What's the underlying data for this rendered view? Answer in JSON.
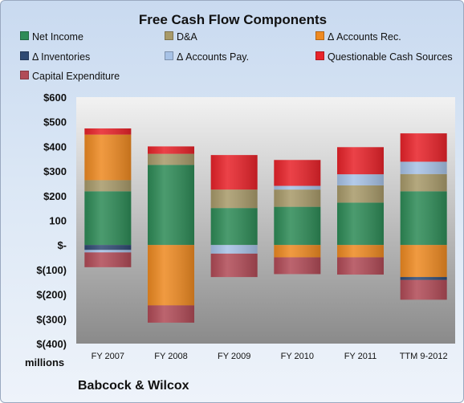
{
  "chart_data": {
    "type": "bar",
    "stacked": true,
    "title": "Free Cash Flow Components",
    "categories": [
      "FY 2007",
      "FY 2008",
      "FY 2009",
      "FY 2010",
      "FY 2011",
      "TTM 9-2012"
    ],
    "series": [
      {
        "name": "Net Income",
        "color": "#2e8b57",
        "values": [
          218,
          325,
          150,
          155,
          172,
          218
        ]
      },
      {
        "name": "D&A",
        "color": "#a89a6a",
        "values": [
          45,
          45,
          75,
          70,
          70,
          70
        ]
      },
      {
        "name": "Δ Accounts Rec.",
        "color": "#ee8a22",
        "values": [
          185,
          -245,
          0,
          -50,
          -50,
          -130
        ]
      },
      {
        "name": "Δ Inventories",
        "color": "#2f4a73",
        "values": [
          -20,
          0,
          0,
          0,
          0,
          -12
        ]
      },
      {
        "name": "Δ Accounts Pay.",
        "color": "#a7c2e6",
        "values": [
          -10,
          0,
          -35,
          15,
          45,
          50
        ]
      },
      {
        "name": "Questionable Cash Sources",
        "color": "#e8232a",
        "values": [
          25,
          30,
          140,
          105,
          110,
          115
        ]
      },
      {
        "name": "Capital Expenditure",
        "color": "#b14b57",
        "values": [
          -60,
          -70,
          -95,
          -68,
          -70,
          -80
        ]
      }
    ],
    "ylim": [
      -400,
      600
    ],
    "yticks": [
      600,
      500,
      400,
      300,
      200,
      100,
      0,
      -100,
      -200,
      -300,
      -400
    ],
    "ytick_labels": [
      "$600",
      "$500",
      "$400",
      "$300",
      "$200",
      "100",
      "$-",
      "$(100)",
      "$(200)",
      "$(300)",
      "$(400)"
    ],
    "unit_label": "millions",
    "grid": false,
    "legend": "top"
  },
  "footer": {
    "company": "Babcock & Wilcox"
  }
}
